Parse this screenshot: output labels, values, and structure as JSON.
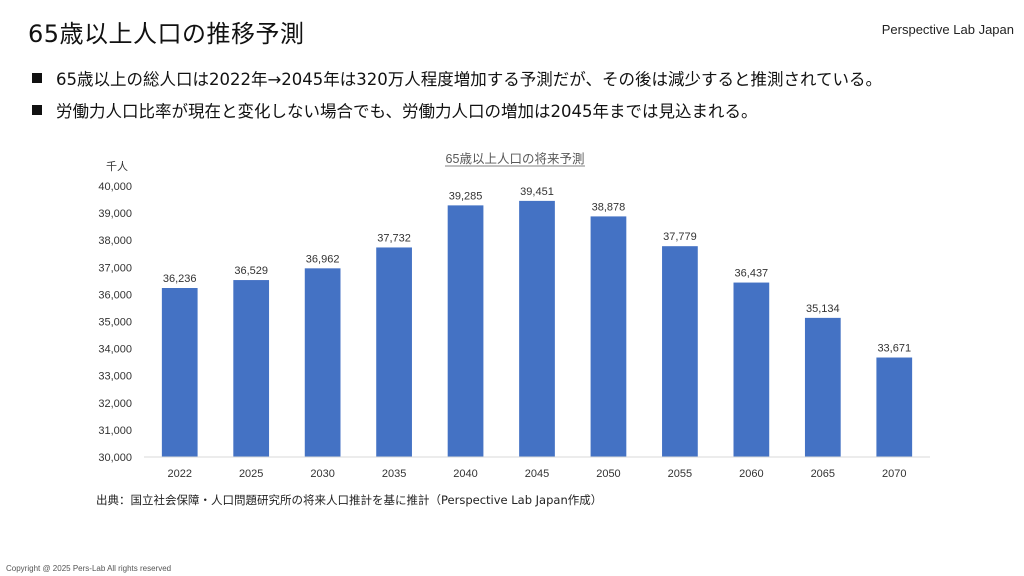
{
  "header": {
    "title": "65歳以上人口の推移予測",
    "brand": "Perspective Lab Japan"
  },
  "bullets": [
    "65歳以上の総人口は2022年→2045年は320万人程度増加する予測だが、その後は減少すると推測されている。",
    "労働力人口比率が現在と変化しない場合でも、労働力人口の増加は2045年までは見込まれる。"
  ],
  "chart_data": {
    "type": "bar",
    "title": "65歳以上人口の将来予測",
    "ylabel": "千人",
    "xlabel": "",
    "categories": [
      "2022",
      "2025",
      "2030",
      "2035",
      "2040",
      "2045",
      "2050",
      "2055",
      "2060",
      "2065",
      "2070"
    ],
    "values": [
      36236,
      36529,
      36962,
      37732,
      39285,
      39451,
      38878,
      37779,
      36437,
      35134,
      33671
    ],
    "value_labels": [
      "36,236",
      "36,529",
      "36,962",
      "37,732",
      "39,285",
      "39,451",
      "38,878",
      "37,779",
      "36,437",
      "35,134",
      "33,671"
    ],
    "ylim": [
      30000,
      40000
    ],
    "yticks": [
      30000,
      31000,
      32000,
      33000,
      34000,
      35000,
      36000,
      37000,
      38000,
      39000,
      40000
    ],
    "ytick_labels": [
      "30,000",
      "31,000",
      "32,000",
      "33,000",
      "34,000",
      "35,000",
      "36,000",
      "37,000",
      "38,000",
      "39,000",
      "40,000"
    ],
    "bar_color": "#4472C4",
    "grid": false,
    "legend": "none"
  },
  "source": "出典：国立社会保障・人口問題研究所の将来人口推計を基に推計（Perspective Lab Japan作成）",
  "footer": {
    "copyright": "Copyright @ 2025 Pers-Lab All rights reserved"
  }
}
